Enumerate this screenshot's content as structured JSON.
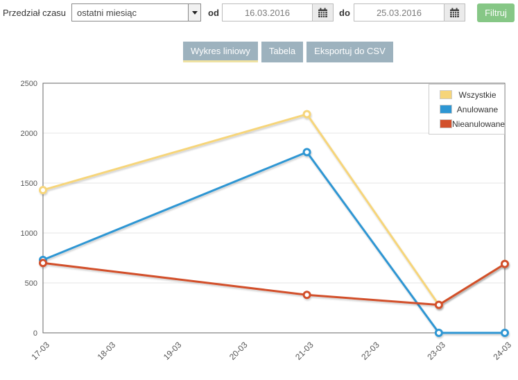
{
  "filter_bar": {
    "label": "Przedział czasu",
    "range_select": {
      "value": "ostatni miesiąc"
    },
    "from_label": "od",
    "from_value": "16.03.2016",
    "to_label": "do",
    "to_value": "25.03.2016",
    "filter_button": "Filtruj"
  },
  "toolbar": {
    "line_chart_label": "Wykres liniowy",
    "table_label": "Tabela",
    "export_label": "Eksportuj do CSV"
  },
  "colors": {
    "toolbar_button_bg": "#9db2be",
    "active_tab_underline": "#efe2a2",
    "filter_button_green": "#86c786",
    "plot_border": "#666666",
    "gridline": "#e6e6e6",
    "tick_text": "#545454"
  },
  "chart_data": {
    "type": "line",
    "title": "",
    "xlabel": "",
    "ylabel": "",
    "categories": [
      "17-03",
      "18-03",
      "19-03",
      "20-03",
      "21-03",
      "22-03",
      "23-03",
      "24-03"
    ],
    "ylim": [
      0,
      2500
    ],
    "ytick_step": 500,
    "grid": true,
    "legend_position": "top-right",
    "marker": "open-circle",
    "series": [
      {
        "name": "Wszystkie",
        "color": "#f6d57a",
        "points": [
          [
            "17-03",
            1430
          ],
          [
            "21-03",
            2190
          ],
          [
            "23-03",
            280
          ],
          [
            "24-03",
            690
          ]
        ]
      },
      {
        "name": "Anulowane",
        "color": "#2d96d3",
        "points": [
          [
            "17-03",
            730
          ],
          [
            "21-03",
            1810
          ],
          [
            "23-03",
            0
          ],
          [
            "24-03",
            0
          ]
        ]
      },
      {
        "name": "Nieanulowane",
        "color": "#d2502c",
        "points": [
          [
            "17-03",
            700
          ],
          [
            "21-03",
            380
          ],
          [
            "23-03",
            280
          ],
          [
            "24-03",
            690
          ]
        ]
      }
    ]
  }
}
